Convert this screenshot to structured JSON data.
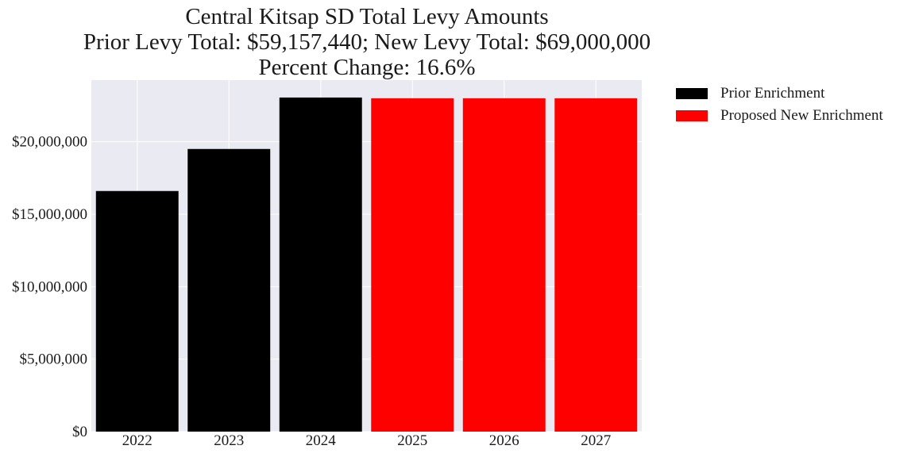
{
  "chart_data": {
    "type": "bar",
    "title": "Central Kitsap SD Total Levy Amounts",
    "subtitle_lines": [
      "Prior Levy Total:  $59,157,440; New Levy Total: $69,000,000",
      "Percent Change: 16.6%"
    ],
    "categories": [
      "2022",
      "2023",
      "2024",
      "2025",
      "2026",
      "2027"
    ],
    "series": [
      {
        "name": "Prior Enrichment",
        "color": "#000000",
        "values": [
          16600000,
          19500000,
          23050000,
          null,
          null,
          null
        ]
      },
      {
        "name": "Proposed New Enrichment",
        "color": "#ff0000",
        "values": [
          null,
          null,
          null,
          23000000,
          23000000,
          23000000
        ]
      }
    ],
    "xlabel": "",
    "ylabel": "",
    "ylim": [
      0,
      24250000
    ],
    "yticks": [
      0,
      5000000,
      10000000,
      15000000,
      20000000
    ],
    "ytick_labels": [
      "$0",
      "$5,000,000",
      "$10,000,000",
      "$15,000,000",
      "$20,000,000"
    ],
    "grid": true,
    "legend_position": "outside-top-right",
    "plot_background": "#eaeaf2"
  }
}
